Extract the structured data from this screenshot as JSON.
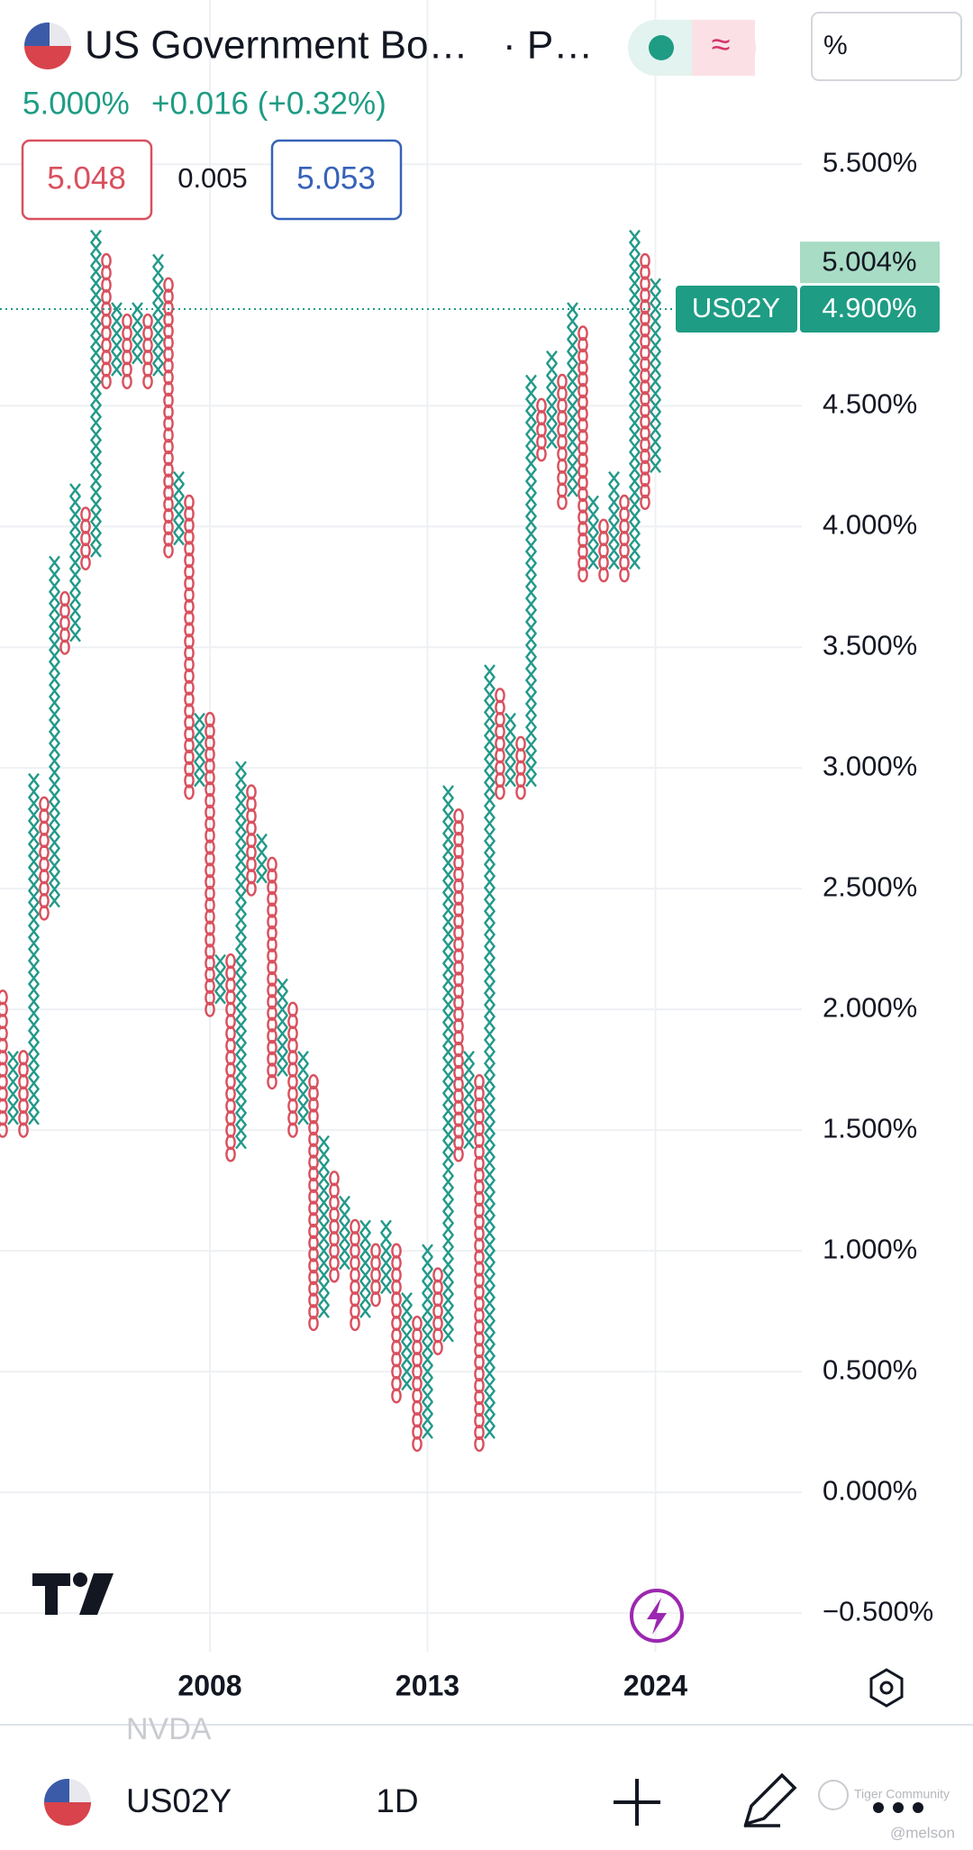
{
  "header": {
    "title": "US Government Bo…",
    "suffix": "· P…",
    "price": "5.000%",
    "change": "+0.016 (+0.32%)",
    "bid": "5.048",
    "spread": "0.005",
    "ask": "5.053",
    "unit": "%"
  },
  "chart_data": {
    "type": "point-and-figure",
    "x_color": "#22998a",
    "o_color": "#d9505e",
    "columns": [
      {
        "type": "O",
        "high": 2.05,
        "low": 1.5
      },
      {
        "type": "X",
        "low": 1.55,
        "high": 1.8
      },
      {
        "type": "O",
        "high": 1.8,
        "low": 1.5
      },
      {
        "type": "X",
        "low": 1.55,
        "high": 2.95
      },
      {
        "type": "O",
        "high": 2.85,
        "low": 2.4
      },
      {
        "type": "X",
        "low": 2.45,
        "high": 3.85
      },
      {
        "type": "O",
        "high": 3.7,
        "low": 3.5
      },
      {
        "type": "X",
        "low": 3.55,
        "high": 4.15
      },
      {
        "type": "O",
        "high": 4.05,
        "low": 3.85
      },
      {
        "type": "X",
        "low": 3.9,
        "high": 5.2
      },
      {
        "type": "O",
        "high": 5.1,
        "low": 4.6
      },
      {
        "type": "X",
        "low": 4.65,
        "high": 4.9
      },
      {
        "type": "O",
        "high": 4.85,
        "low": 4.6
      },
      {
        "type": "X",
        "low": 4.7,
        "high": 4.9
      },
      {
        "type": "O",
        "high": 4.85,
        "low": 4.6
      },
      {
        "type": "X",
        "low": 4.65,
        "high": 5.1
      },
      {
        "type": "O",
        "high": 5.0,
        "low": 3.9
      },
      {
        "type": "X",
        "low": 3.95,
        "high": 4.2
      },
      {
        "type": "O",
        "high": 4.1,
        "low": 2.9
      },
      {
        "type": "X",
        "low": 2.95,
        "high": 3.2
      },
      {
        "type": "O",
        "high": 3.2,
        "low": 2.0
      },
      {
        "type": "X",
        "low": 2.05,
        "high": 2.2
      },
      {
        "type": "O",
        "high": 2.2,
        "low": 1.4
      },
      {
        "type": "X",
        "low": 1.45,
        "high": 3.0
      },
      {
        "type": "O",
        "high": 2.9,
        "low": 2.5
      },
      {
        "type": "X",
        "low": 2.55,
        "high": 2.7
      },
      {
        "type": "O",
        "high": 2.6,
        "low": 1.7
      },
      {
        "type": "X",
        "low": 1.75,
        "high": 2.1
      },
      {
        "type": "O",
        "high": 2.0,
        "low": 1.5
      },
      {
        "type": "X",
        "low": 1.55,
        "high": 1.8
      },
      {
        "type": "O",
        "high": 1.7,
        "low": 0.7
      },
      {
        "type": "X",
        "low": 0.75,
        "high": 1.45
      },
      {
        "type": "O",
        "high": 1.3,
        "low": 0.9
      },
      {
        "type": "X",
        "low": 0.95,
        "high": 1.2
      },
      {
        "type": "O",
        "high": 1.1,
        "low": 0.7
      },
      {
        "type": "X",
        "low": 0.75,
        "high": 1.1
      },
      {
        "type": "O",
        "high": 1.0,
        "low": 0.8
      },
      {
        "type": "X",
        "low": 0.85,
        "high": 1.1
      },
      {
        "type": "O",
        "high": 1.0,
        "low": 0.4
      },
      {
        "type": "X",
        "low": 0.45,
        "high": 0.8
      },
      {
        "type": "O",
        "high": 0.7,
        "low": 0.2
      },
      {
        "type": "X",
        "low": 0.25,
        "high": 1.0
      },
      {
        "type": "O",
        "high": 0.9,
        "low": 0.6
      },
      {
        "type": "X",
        "low": 0.65,
        "high": 2.9
      },
      {
        "type": "O",
        "high": 2.8,
        "low": 1.4
      },
      {
        "type": "X",
        "low": 1.45,
        "high": 1.8
      },
      {
        "type": "O",
        "high": 1.7,
        "low": 0.2
      },
      {
        "type": "X",
        "low": 0.25,
        "high": 3.4
      },
      {
        "type": "O",
        "high": 3.3,
        "low": 2.9
      },
      {
        "type": "X",
        "low": 2.95,
        "high": 3.2
      },
      {
        "type": "O",
        "high": 3.1,
        "low": 2.9
      },
      {
        "type": "X",
        "low": 2.95,
        "high": 4.6
      },
      {
        "type": "O",
        "high": 4.5,
        "low": 4.3
      },
      {
        "type": "X",
        "low": 4.35,
        "high": 4.7
      },
      {
        "type": "O",
        "high": 4.6,
        "low": 4.1
      },
      {
        "type": "X",
        "low": 4.15,
        "high": 4.9
      },
      {
        "type": "O",
        "high": 4.8,
        "low": 3.8
      },
      {
        "type": "X",
        "low": 3.85,
        "high": 4.1
      },
      {
        "type": "O",
        "high": 4.0,
        "low": 3.8
      },
      {
        "type": "X",
        "low": 3.85,
        "high": 4.2
      },
      {
        "type": "O",
        "high": 4.1,
        "low": 3.8
      },
      {
        "type": "X",
        "low": 3.85,
        "high": 5.2
      },
      {
        "type": "O",
        "high": 5.1,
        "low": 4.1
      },
      {
        "type": "X",
        "low": 4.25,
        "high": 5.0
      }
    ],
    "categories": [
      null,
      null,
      null,
      null,
      null,
      null,
      null,
      null,
      null,
      null,
      null,
      null,
      null,
      null,
      null,
      null,
      null,
      null,
      null,
      null,
      "2008",
      null,
      null,
      null,
      null,
      null,
      null,
      null,
      null,
      null,
      null,
      null,
      null,
      null,
      null,
      null,
      null,
      null,
      null,
      null,
      null,
      "2013",
      null,
      null,
      null,
      null,
      null,
      null,
      null,
      null,
      null,
      null,
      null,
      null,
      null,
      null,
      null,
      null,
      null,
      null,
      null,
      null,
      null,
      "2024"
    ],
    "ylim": [
      -0.66,
      6.18
    ],
    "yticks": [
      {
        "value": -0.5,
        "label": "−0.500%"
      },
      {
        "value": 0,
        "label": "0.000%"
      },
      {
        "value": 0.5,
        "label": "0.500%"
      },
      {
        "value": 1,
        "label": "1.000%"
      },
      {
        "value": 1.5,
        "label": "1.500%"
      },
      {
        "value": 2,
        "label": "2.000%"
      },
      {
        "value": 2.5,
        "label": "2.500%"
      },
      {
        "value": 3,
        "label": "3.000%"
      },
      {
        "value": 3.5,
        "label": "3.500%"
      },
      {
        "value": 4,
        "label": "4.000%"
      },
      {
        "value": 4.5,
        "label": "4.500%"
      },
      {
        "value": 5.5,
        "label": "5.500%"
      }
    ],
    "grid": true,
    "symbol": "US02Y",
    "last": {
      "value": 4.9,
      "label": "4.900%"
    },
    "high_marker": {
      "value": 5.004,
      "label": "5.004%"
    }
  },
  "footer": {
    "ghost": "NVDA",
    "symbol": "US02Y",
    "interval": "1D",
    "watermark": "Tiger Community",
    "handle": "@melson"
  }
}
